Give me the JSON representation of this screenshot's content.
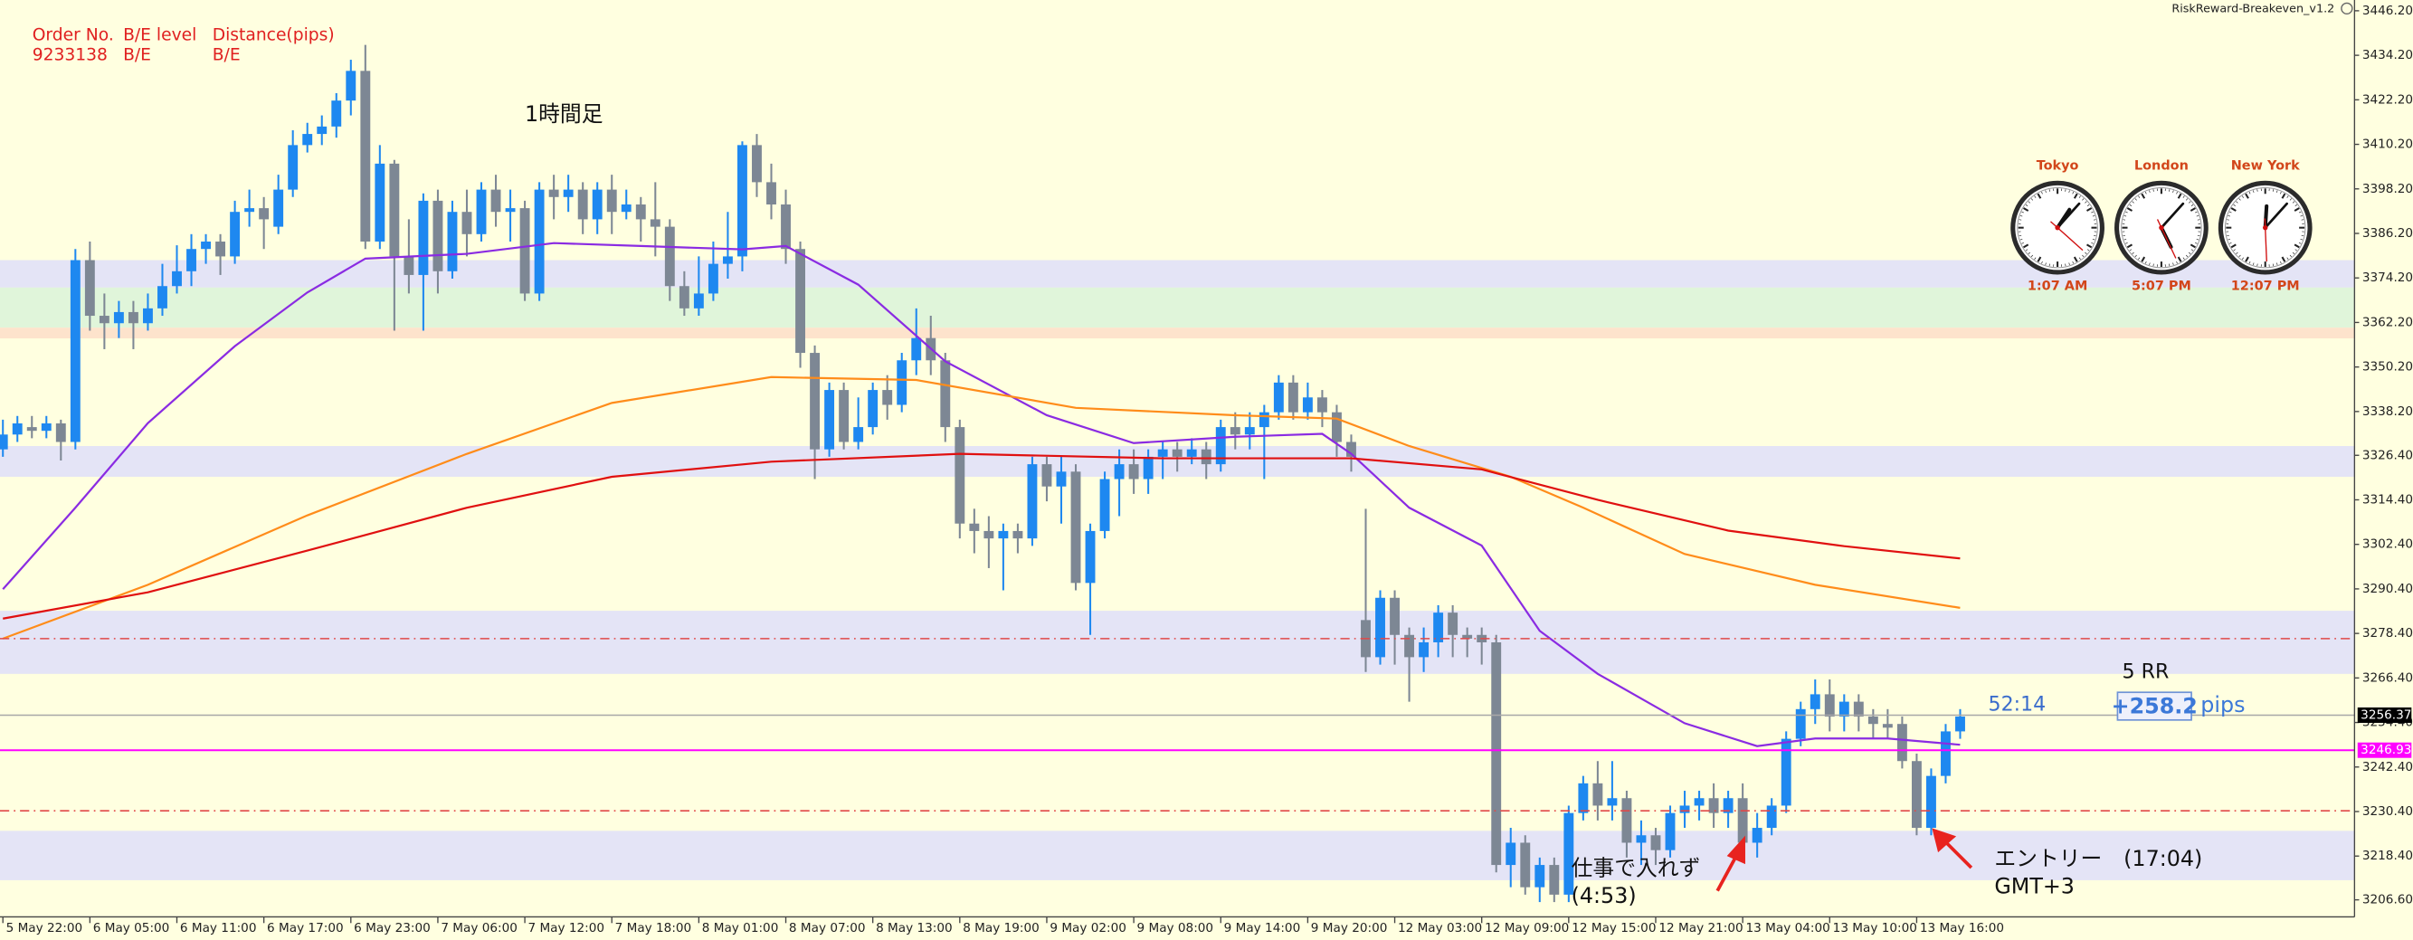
{
  "chart_data": {
    "type": "candlestick",
    "up_color": "#1e88f0",
    "down_color": "#7d8794",
    "xlim": [
      -0.2,
      162.2
    ],
    "ylim": [
      3202.0,
      3449.1
    ],
    "open": [
      3328,
      3332,
      3334,
      3333,
      3335,
      3330,
      3379,
      3364,
      3362,
      3365,
      3362,
      3366,
      3372,
      3376,
      3382,
      3384,
      3380,
      3392,
      3393,
      3388,
      3398,
      3410,
      3413,
      3415,
      3422,
      3430,
      3384,
      3405,
      3380,
      3375,
      3395,
      3376,
      3392,
      3386,
      3398,
      3392,
      3393,
      3370,
      3398,
      3396,
      3398,
      3390,
      3398,
      3392,
      3394,
      3390,
      3388,
      3372,
      3366,
      3370,
      3378,
      3380,
      3410,
      3400,
      3394,
      3382,
      3354,
      3328,
      3344,
      3330,
      3334,
      3344,
      3340,
      3352,
      3358,
      3352,
      3334,
      3308,
      3306,
      3304,
      3306,
      3304,
      3324,
      3318,
      3322,
      3292,
      3306,
      3320,
      3324,
      3320,
      3326,
      3328,
      3326,
      3328,
      3324,
      3334,
      3332,
      3334,
      3338,
      3346,
      3338,
      3342,
      3338,
      3330,
      3282,
      3272,
      3288,
      3278,
      3272,
      3276,
      3284,
      3278,
      3278,
      3276,
      3216,
      3222,
      3210,
      3216,
      3208,
      3230,
      3238,
      3232,
      3234,
      3222,
      3224,
      3220,
      3230,
      3232,
      3234,
      3230,
      3234,
      3222,
      3226,
      3232,
      3250,
      3258,
      3262,
      3256,
      3260,
      3256,
      3254,
      3254,
      3244,
      3226,
      3240,
      3252
    ],
    "high": [
      3336,
      3337,
      3337,
      3337,
      3336,
      3382,
      3384,
      3370,
      3368,
      3368,
      3370,
      3378,
      3383,
      3386,
      3386,
      3386,
      3395,
      3398,
      3396,
      3402,
      3414,
      3416,
      3418,
      3424,
      3433,
      3437,
      3410,
      3406,
      3390,
      3397,
      3398,
      3395,
      3398,
      3400,
      3402,
      3398,
      3395,
      3400,
      3402,
      3402,
      3400,
      3400,
      3402,
      3398,
      3396,
      3400,
      3390,
      3376,
      3380,
      3384,
      3392,
      3411,
      3413,
      3405,
      3398,
      3384,
      3356,
      3346,
      3346,
      3342,
      3346,
      3348,
      3354,
      3366,
      3364,
      3354,
      3336,
      3312,
      3310,
      3308,
      3308,
      3326,
      3326,
      3326,
      3324,
      3308,
      3322,
      3328,
      3328,
      3328,
      3330,
      3330,
      3331,
      3330,
      3336,
      3338,
      3338,
      3340,
      3348,
      3348,
      3346,
      3344,
      3340,
      3332,
      3312,
      3290,
      3290,
      3280,
      3280,
      3286,
      3286,
      3280,
      3280,
      3278,
      3226,
      3224,
      3218,
      3218,
      3232,
      3240,
      3244,
      3244,
      3236,
      3228,
      3226,
      3232,
      3236,
      3236,
      3238,
      3236,
      3238,
      3230,
      3234,
      3252,
      3260,
      3266,
      3266,
      3262,
      3262,
      3258,
      3258,
      3256,
      3246,
      3242,
      3254,
      3258
    ],
    "low": [
      3326,
      3330,
      3331,
      3331,
      3325,
      3328,
      3360,
      3355,
      3358,
      3355,
      3360,
      3364,
      3370,
      3372,
      3378,
      3375,
      3378,
      3388,
      3382,
      3386,
      3396,
      3408,
      3410,
      3412,
      3418,
      3382,
      3382,
      3360,
      3370,
      3360,
      3370,
      3374,
      3380,
      3384,
      3388,
      3384,
      3368,
      3368,
      3390,
      3392,
      3386,
      3386,
      3386,
      3390,
      3384,
      3380,
      3368,
      3364,
      3364,
      3368,
      3374,
      3376,
      3396,
      3390,
      3378,
      3350,
      3320,
      3326,
      3328,
      3328,
      3332,
      3336,
      3338,
      3348,
      3348,
      3330,
      3304,
      3300,
      3296,
      3290,
      3300,
      3302,
      3314,
      3308,
      3290,
      3278,
      3304,
      3310,
      3316,
      3316,
      3320,
      3322,
      3324,
      3320,
      3322,
      3328,
      3328,
      3320,
      3336,
      3336,
      3336,
      3334,
      3326,
      3322,
      3268,
      3270,
      3270,
      3260,
      3268,
      3272,
      3272,
      3272,
      3270,
      3214,
      3210,
      3208,
      3206,
      3206,
      3206,
      3228,
      3228,
      3228,
      3218,
      3216,
      3216,
      3218,
      3226,
      3228,
      3226,
      3226,
      3220,
      3218,
      3224,
      3230,
      3248,
      3254,
      3252,
      3252,
      3252,
      3250,
      3250,
      3242,
      3224,
      3224,
      3238,
      3250
    ],
    "close": [
      3332,
      3335,
      3333,
      3335,
      3330,
      3379,
      3364,
      3362,
      3365,
      3362,
      3366,
      3372,
      3376,
      3382,
      3384,
      3380,
      3392,
      3393,
      3390,
      3398,
      3410,
      3413,
      3415,
      3422,
      3430,
      3384,
      3405,
      3380,
      3375,
      3395,
      3376,
      3392,
      3386,
      3398,
      3392,
      3393,
      3370,
      3398,
      3396,
      3398,
      3390,
      3398,
      3392,
      3394,
      3390,
      3388,
      3372,
      3366,
      3370,
      3378,
      3380,
      3410,
      3400,
      3394,
      3382,
      3354,
      3328,
      3344,
      3330,
      3334,
      3344,
      3340,
      3352,
      3358,
      3352,
      3334,
      3308,
      3306,
      3304,
      3306,
      3304,
      3324,
      3318,
      3322,
      3292,
      3306,
      3320,
      3324,
      3320,
      3326,
      3328,
      3326,
      3328,
      3324,
      3334,
      3332,
      3334,
      3338,
      3346,
      3338,
      3342,
      3338,
      3330,
      3326,
      3272,
      3288,
      3278,
      3272,
      3276,
      3284,
      3278,
      3277,
      3276,
      3216,
      3222,
      3210,
      3216,
      3208,
      3230,
      3238,
      3232,
      3234,
      3222,
      3224,
      3220,
      3230,
      3232,
      3234,
      3230,
      3234,
      3222,
      3226,
      3232,
      3250,
      3258,
      3262,
      3256,
      3260,
      3256,
      3254,
      3253,
      3244,
      3226,
      3240,
      3252,
      3256
    ],
    "moving_averages": [
      {
        "color": "#8a2be2",
        "x": [
          0,
          5,
          10,
          16,
          21,
          25,
          32,
          38,
          44,
          51,
          54,
          59,
          65,
          72,
          78,
          85,
          91,
          93,
          97,
          102,
          106,
          110,
          116,
          121,
          125,
          130,
          135
        ],
        "values": [
          3290.3,
          3312.3,
          3335.1,
          3355.8,
          3370.3,
          3379.4,
          3380.7,
          3383.6,
          3382.8,
          3381.9,
          3382.8,
          3372.4,
          3351.7,
          3337.2,
          3329.7,
          3331.4,
          3332.2,
          3326.8,
          3312.3,
          3302.1,
          3279.1,
          3267.5,
          3254.2,
          3248.0,
          3250.1,
          3250.1,
          3248.4
        ]
      },
      {
        "color": "#ff8c1a",
        "x": [
          0,
          10,
          21,
          32,
          42,
          53,
          63,
          74,
          85,
          92,
          97,
          104,
          109,
          116,
          125,
          135
        ],
        "values": [
          3277.0,
          3291.5,
          3310.2,
          3326.8,
          3340.5,
          3347.5,
          3346.7,
          3339.2,
          3337.2,
          3336.3,
          3328.9,
          3320.6,
          3312.3,
          3299.8,
          3291.5,
          3285.3
        ]
      },
      {
        "color": "#e01010",
        "x": [
          0,
          10,
          21,
          32,
          42,
          53,
          66,
          80,
          93,
          102,
          110,
          119,
          127,
          135
        ],
        "values": [
          3282.4,
          3289.5,
          3300.7,
          3312.3,
          3320.6,
          3324.7,
          3326.8,
          3325.6,
          3325.6,
          3322.6,
          3314.4,
          3306.1,
          3301.9,
          3298.6
        ]
      }
    ],
    "zones": [
      {
        "color": "#e4e4f6",
        "from": 3379.0,
        "to": 3371.6
      },
      {
        "color": "#e0f5da",
        "from": 3371.6,
        "to": 3360.8
      },
      {
        "color": "#fde3cc",
        "from": 3360.8,
        "to": 3357.9
      },
      {
        "color": "#e4e4f6",
        "from": 3328.9,
        "to": 3320.6
      },
      {
        "color": "#e4e4f6",
        "from": 3284.5,
        "to": 3267.5
      },
      {
        "color": "#e4e4f6",
        "from": 3225.2,
        "to": 3211.9
      }
    ],
    "levels": [
      {
        "value": 3277.0,
        "color": "#e04848",
        "style": "dashdot"
      },
      {
        "value": 3230.6,
        "color": "#e04848",
        "style": "dashdot"
      },
      {
        "value": 3256.37,
        "color": "#a8a8a8",
        "style": "solid",
        "tag_color": "#000000"
      },
      {
        "value": 3246.93,
        "color": "#ff00ff",
        "style": "solid",
        "tag_color": "#ff00ff"
      }
    ],
    "yticks": [
      {
        "value": 3446.2,
        "label": "3446.20"
      },
      {
        "value": 3434.2,
        "label": "3434.20"
      },
      {
        "value": 3422.2,
        "label": "3422.20"
      },
      {
        "value": 3410.2,
        "label": "3410.20"
      },
      {
        "value": 3398.2,
        "label": "3398.20"
      },
      {
        "value": 3386.2,
        "label": "3386.20"
      },
      {
        "value": 3374.2,
        "label": "3374.20"
      },
      {
        "value": 3362.2,
        "label": "3362.20"
      },
      {
        "value": 3350.2,
        "label": "3350.20"
      },
      {
        "value": 3338.2,
        "label": "3338.20"
      },
      {
        "value": 3326.4,
        "label": "3326.40"
      },
      {
        "value": 3314.4,
        "label": "3314.40"
      },
      {
        "value": 3302.4,
        "label": "3302.40"
      },
      {
        "value": 3290.4,
        "label": "3290.40"
      },
      {
        "value": 3278.4,
        "label": "3278.40"
      },
      {
        "value": 3266.4,
        "label": "3266.40"
      },
      {
        "value": 3254.4,
        "label": "3254.40"
      },
      {
        "value": 3242.4,
        "label": "3242.40"
      },
      {
        "value": 3230.4,
        "label": "3230.40"
      },
      {
        "value": 3218.4,
        "label": "3218.40"
      },
      {
        "value": 3206.6,
        "label": "3206.60"
      }
    ],
    "xticks": [
      {
        "value": 0,
        "label": "5 May 22:00"
      },
      {
        "value": 6,
        "label": "6 May 05:00"
      },
      {
        "value": 12,
        "label": "6 May 11:00"
      },
      {
        "value": 18,
        "label": "6 May 17:00"
      },
      {
        "value": 24,
        "label": "6 May 23:00"
      },
      {
        "value": 30,
        "label": "7 May 06:00"
      },
      {
        "value": 36,
        "label": "7 May 12:00"
      },
      {
        "value": 42,
        "label": "7 May 18:00"
      },
      {
        "value": 48,
        "label": "8 May 01:00"
      },
      {
        "value": 54,
        "label": "8 May 07:00"
      },
      {
        "value": 60,
        "label": "8 May 13:00"
      },
      {
        "value": 66,
        "label": "8 May 19:00"
      },
      {
        "value": 72,
        "label": "9 May 02:00"
      },
      {
        "value": 78,
        "label": "9 May 08:00"
      },
      {
        "value": 84,
        "label": "9 May 14:00"
      },
      {
        "value": 90,
        "label": "9 May 20:00"
      },
      {
        "value": 96,
        "label": "12 May 03:00"
      },
      {
        "value": 102,
        "label": "12 May 09:00"
      },
      {
        "value": 108,
        "label": "12 May 15:00"
      },
      {
        "value": 114,
        "label": "12 May 21:00"
      },
      {
        "value": 120,
        "label": "13 May 04:00"
      },
      {
        "value": 126,
        "label": "13 May 10:00"
      },
      {
        "value": 132,
        "label": "13 May 16:00"
      }
    ]
  },
  "indicator": "RiskReward-Breakeven_v1.2",
  "order_panel": {
    "headers": [
      "Order No.",
      "B/E level",
      "Distance(pips)"
    ],
    "row": [
      "9233138",
      "B/E",
      "B/E"
    ]
  },
  "timeframe_note": "1時間足",
  "clocks": [
    {
      "city": "Tokyo",
      "time": "1:07 AM"
    },
    {
      "city": "London",
      "time": "5:07 PM"
    },
    {
      "city": "New York",
      "time": "12:07 PM"
    }
  ],
  "countdown": "52:14",
  "rr": {
    "label": "5 RR",
    "pips_value": "+258.2",
    "unit": "pips"
  },
  "notes": {
    "missed_line1": "仕事で入れず",
    "missed_line2": "(4:53)",
    "entry_line1": "エントリー　(17:04)",
    "entry_line2": "GMT+3"
  }
}
